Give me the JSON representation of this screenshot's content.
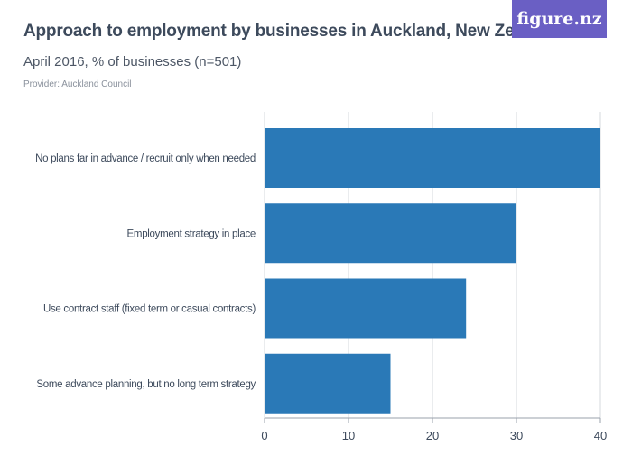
{
  "header": {
    "title": "Approach to employment by businesses in Auckland, New Zealand",
    "subtitle": "April 2016, % of businesses (n=501)",
    "provider": "Provider: Auckland Council",
    "logo": "figure.nz"
  },
  "colors": {
    "bar": "#2a79b7",
    "grid": "#d6d9de",
    "text": "#3d4a5c"
  },
  "chart_data": {
    "type": "bar",
    "orientation": "horizontal",
    "categories": [
      "No plans far in advance / recruit only when needed",
      "Employment strategy in place",
      "Use contract staff (fixed term or casual contracts)",
      "Some advance planning, but no long term strategy"
    ],
    "values": [
      40,
      30,
      24,
      15
    ],
    "xlim": [
      0,
      40
    ],
    "xticks": [
      0,
      10,
      20,
      30,
      40
    ],
    "grid": true
  }
}
